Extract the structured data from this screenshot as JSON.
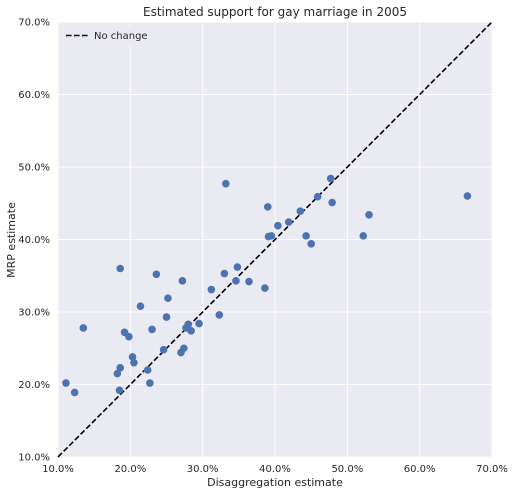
{
  "chart_data": {
    "type": "scatter",
    "title": "Estimated support for gay marriage in 2005",
    "xlabel": "Disaggregation estimate",
    "ylabel": "MRP estimate",
    "xlim": [
      0.1,
      0.7
    ],
    "ylim": [
      0.1,
      0.7
    ],
    "xticks": [
      "10.0%",
      "20.0%",
      "30.0%",
      "40.0%",
      "50.0%",
      "60.0%",
      "70.0%"
    ],
    "yticks": [
      "10.0%",
      "20.0%",
      "30.0%",
      "40.0%",
      "50.0%",
      "60.0%",
      "70.0%"
    ],
    "xtick_values": [
      0.1,
      0.2,
      0.3,
      0.4,
      0.5,
      0.6,
      0.7
    ],
    "ytick_values": [
      0.1,
      0.2,
      0.3,
      0.4,
      0.5,
      0.6,
      0.7
    ],
    "grid": true,
    "legend": {
      "placement": "top-left",
      "entries": [
        "No change"
      ]
    },
    "reference_line": {
      "name": "No change",
      "x": [
        0.1,
        0.7
      ],
      "y": [
        0.1,
        0.7
      ],
      "style": "dashed",
      "color": "#000000"
    },
    "series": [
      {
        "marker_color": "#4c72b0",
        "points": [
          [
            0.111,
            0.202
          ],
          [
            0.123,
            0.189
          ],
          [
            0.135,
            0.278
          ],
          [
            0.182,
            0.215
          ],
          [
            0.186,
            0.36
          ],
          [
            0.185,
            0.192
          ],
          [
            0.186,
            0.223
          ],
          [
            0.192,
            0.272
          ],
          [
            0.198,
            0.266
          ],
          [
            0.203,
            0.238
          ],
          [
            0.205,
            0.23
          ],
          [
            0.214,
            0.308
          ],
          [
            0.224,
            0.22
          ],
          [
            0.227,
            0.202
          ],
          [
            0.23,
            0.276
          ],
          [
            0.236,
            0.352
          ],
          [
            0.246,
            0.248
          ],
          [
            0.25,
            0.293
          ],
          [
            0.252,
            0.319
          ],
          [
            0.27,
            0.244
          ],
          [
            0.272,
            0.343
          ],
          [
            0.274,
            0.25
          ],
          [
            0.277,
            0.278
          ],
          [
            0.28,
            0.283
          ],
          [
            0.284,
            0.274
          ],
          [
            0.295,
            0.284
          ],
          [
            0.312,
            0.331
          ],
          [
            0.323,
            0.296
          ],
          [
            0.33,
            0.353
          ],
          [
            0.332,
            0.477
          ],
          [
            0.346,
            0.343
          ],
          [
            0.348,
            0.362
          ],
          [
            0.364,
            0.342
          ],
          [
            0.386,
            0.333
          ],
          [
            0.39,
            0.445
          ],
          [
            0.391,
            0.404
          ],
          [
            0.395,
            0.405
          ],
          [
            0.404,
            0.419
          ],
          [
            0.419,
            0.424
          ],
          [
            0.435,
            0.439
          ],
          [
            0.443,
            0.405
          ],
          [
            0.45,
            0.394
          ],
          [
            0.459,
            0.459
          ],
          [
            0.477,
            0.484
          ],
          [
            0.479,
            0.451
          ],
          [
            0.522,
            0.405
          ],
          [
            0.53,
            0.434
          ],
          [
            0.666,
            0.46
          ]
        ]
      }
    ]
  }
}
